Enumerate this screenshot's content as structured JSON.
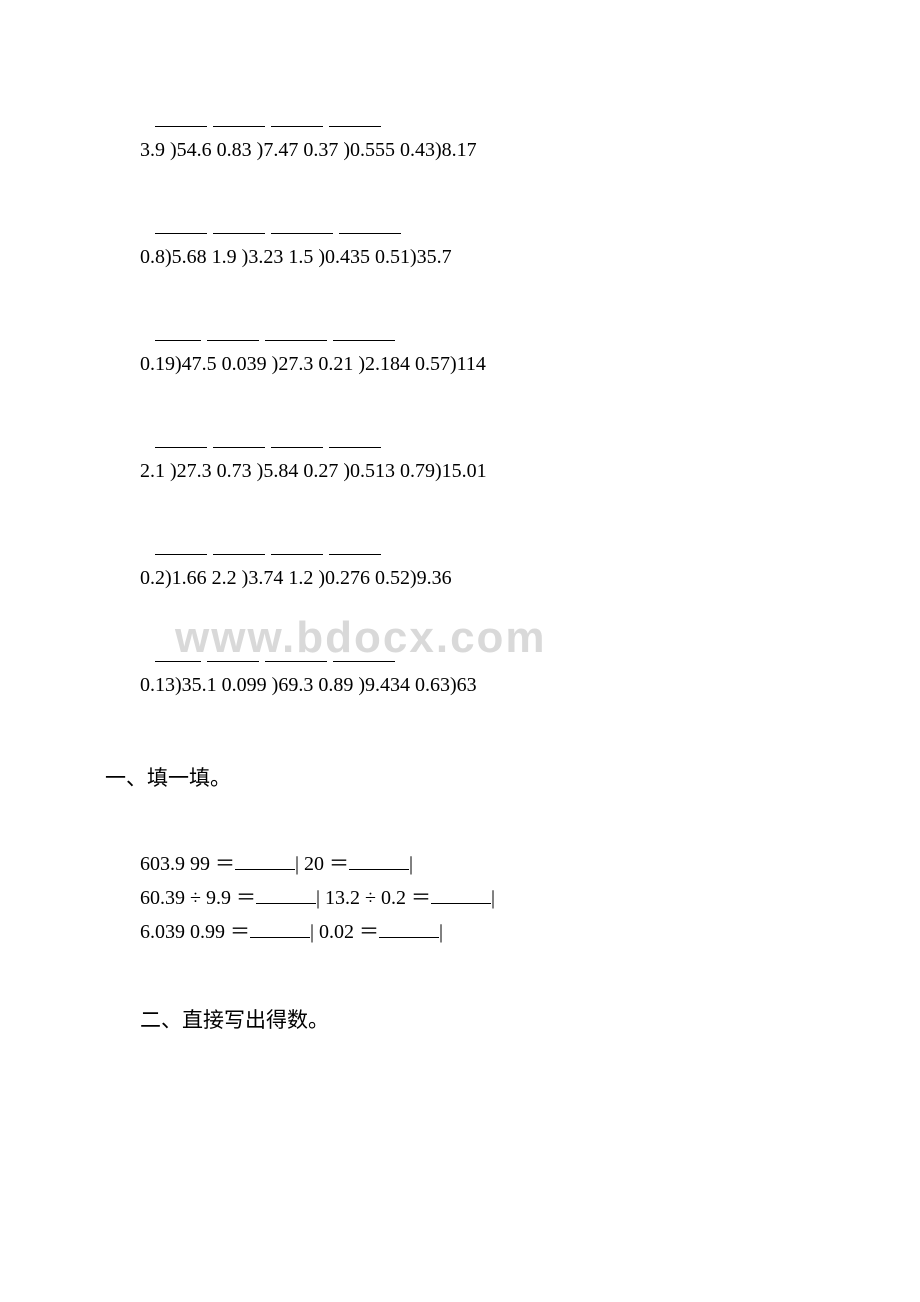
{
  "watermark": "www.bdocx.com",
  "problem_groups": [
    {
      "blank_widths": [
        52,
        52,
        52,
        52
      ],
      "problems": "3.9 )54.6  0.83 )7.47  0.37 )0.555  0.43)8.17"
    },
    {
      "blank_widths": [
        52,
        52,
        62,
        62
      ],
      "problems": "0.8)5.68  1.9 )3.23  1.5 )0.435  0.51)35.7"
    },
    {
      "blank_widths": [
        46,
        52,
        62,
        62
      ],
      "problems": "0.19)47.5  0.039 )27.3  0.21 )2.184  0.57)114"
    },
    {
      "blank_widths": [
        52,
        52,
        52,
        52
      ],
      "problems": "2.1 )27.3  0.73 )5.84  0.27 )0.513  0.79)15.01"
    },
    {
      "blank_widths": [
        52,
        52,
        52,
        52
      ],
      "problems": "0.2)1.66  2.2 )3.74  1.2 )0.276  0.52)9.36"
    },
    {
      "blank_widths": [
        46,
        52,
        62,
        62
      ],
      "problems": "0.13)35.1  0.099 )69.3  0.89 )9.434  0.63)63"
    }
  ],
  "section_one_title": "一、填一填。",
  "fill_lines": [
    {
      "parts": [
        "603.9  99 ＝",
        "BLANK",
        "|   20 ＝",
        "BLANK",
        "|"
      ]
    },
    {
      "parts": [
        "60.39 ÷ 9.9 ＝",
        "BLANK",
        "| 13.2 ÷ 0.2 ＝",
        "BLANK",
        "|"
      ]
    },
    {
      "parts": [
        "6.039  0.99 ＝",
        "BLANK",
        "|   0.02 ＝",
        "BLANK",
        "|"
      ]
    }
  ],
  "section_two_title": "二、直接写出得数。"
}
